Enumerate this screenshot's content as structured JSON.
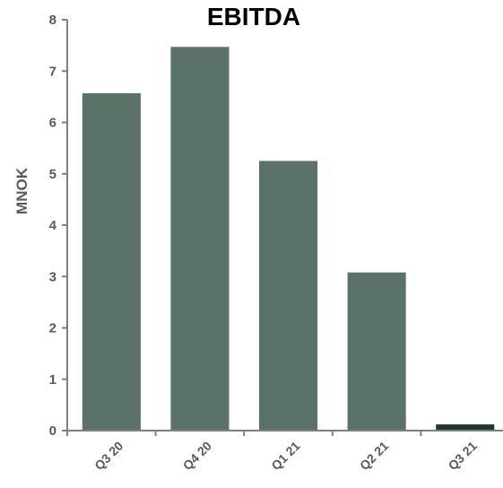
{
  "chart_data": {
    "type": "bar",
    "title": "EBITDA",
    "xlabel": "",
    "ylabel": "MNOK",
    "categories": [
      "Q3 20",
      "Q4 20",
      "Q1 21",
      "Q2 21",
      "Q3 21"
    ],
    "values": [
      6.57,
      7.47,
      5.25,
      3.08,
      0.12
    ],
    "ylim": [
      0,
      8
    ],
    "yticks": [
      "0",
      "1",
      "2",
      "3",
      "4",
      "5",
      "6",
      "7",
      "8"
    ],
    "grid": false,
    "legend": "none",
    "colors": {
      "bar": "#5a7268",
      "bar_highlight": "#1e3a2e",
      "axis": "#7f7f7f",
      "tick_text": "#595959"
    }
  }
}
